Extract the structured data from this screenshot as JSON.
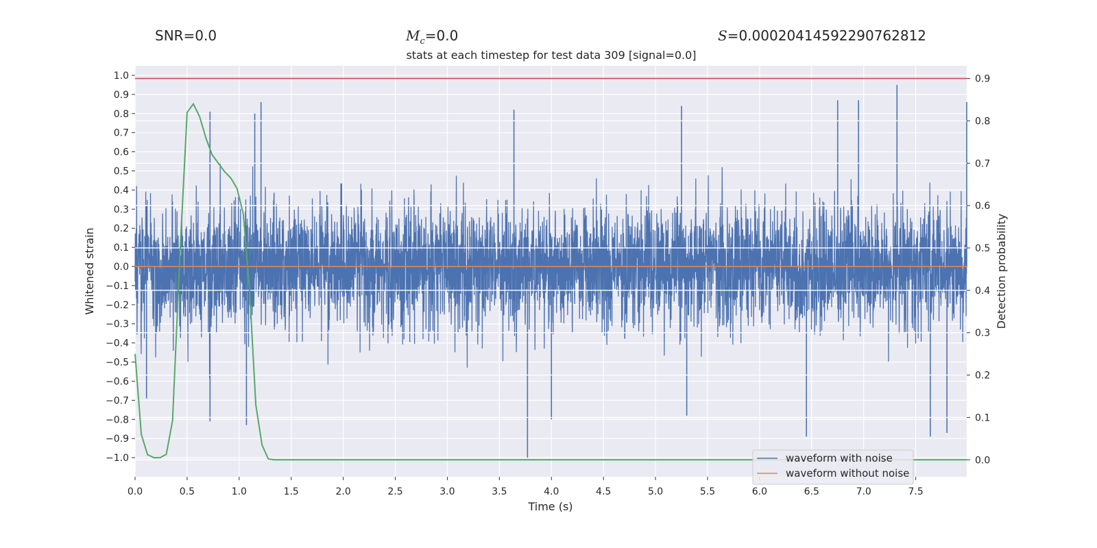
{
  "header": {
    "snr": "SNR=0.0",
    "mc_symbol": "M",
    "mc_sub": "c",
    "mc_value": "=0.0",
    "s_symbol": "S",
    "s_value": "=0.00020414592290762812"
  },
  "chart_data": {
    "type": "line",
    "title": "stats at each timestep for test data 309 [signal=0.0]",
    "xlabel": "Time (s)",
    "ylabel": "Whitened strain",
    "y2label": "Detection probability",
    "xlim": [
      0.0,
      7.99
    ],
    "ylim": [
      -1.1,
      1.05
    ],
    "y2lim": [
      -0.04,
      0.93
    ],
    "xticks": [
      "0.0",
      "0.5",
      "1.0",
      "1.5",
      "2.0",
      "2.5",
      "3.0",
      "3.5",
      "4.0",
      "4.5",
      "5.0",
      "5.5",
      "6.0",
      "6.5",
      "7.0",
      "7.5"
    ],
    "yticks": [
      "1.0",
      "0.9",
      "0.8",
      "0.7",
      "0.6",
      "0.5",
      "0.4",
      "0.3",
      "0.2",
      "0.1",
      "0.0",
      "−0.1",
      "−0.2",
      "−0.3",
      "−0.4",
      "−0.5",
      "−0.6",
      "−0.7",
      "−0.8",
      "−0.9",
      "−1.0"
    ],
    "y2ticks": [
      "0.9",
      "0.8",
      "0.7",
      "0.6",
      "0.5",
      "0.4",
      "0.3",
      "0.2",
      "0.1",
      "0.0"
    ],
    "threshold": 0.9,
    "legend": {
      "position": "lower-right",
      "entries": [
        "waveform with noise",
        "waveform without noise"
      ]
    },
    "series": [
      {
        "name": "waveform with noise",
        "color": "#4c72b0",
        "axis": "left",
        "description": "noisy whitened strain, dense band roughly between -0.45 and 0.45",
        "typical_amplitude": 0.16,
        "peaks": [
          [
            0.72,
            0.81
          ],
          [
            1.15,
            0.8
          ],
          [
            1.21,
            0.86
          ],
          [
            3.64,
            0.82
          ],
          [
            5.25,
            0.84
          ],
          [
            6.75,
            0.87
          ],
          [
            6.95,
            0.87
          ],
          [
            7.32,
            0.95
          ],
          [
            7.99,
            0.86
          ]
        ],
        "troughs": [
          [
            0.11,
            -0.69
          ],
          [
            0.72,
            -0.81
          ],
          [
            1.07,
            -0.83
          ],
          [
            3.77,
            -1.0
          ],
          [
            4.0,
            -0.8
          ],
          [
            5.3,
            -0.78
          ],
          [
            6.45,
            -0.89
          ],
          [
            7.64,
            -0.89
          ],
          [
            7.8,
            -0.87
          ]
        ]
      },
      {
        "name": "waveform without noise",
        "color": "#dd8452",
        "axis": "left",
        "x": [
          0.0,
          7.99
        ],
        "y": [
          0.0,
          0.0
        ]
      },
      {
        "name": "detection probability",
        "color": "#55a868",
        "axis": "right",
        "x": [
          0.0,
          0.06,
          0.12,
          0.18,
          0.24,
          0.3,
          0.36,
          0.43,
          0.5,
          0.56,
          0.62,
          0.68,
          0.74,
          0.8,
          0.86,
          0.92,
          0.98,
          1.04,
          1.1,
          1.16,
          1.22,
          1.28,
          1.34,
          1.5,
          3.0,
          5.0,
          7.99
        ],
        "y": [
          0.25,
          0.06,
          0.012,
          0.005,
          0.005,
          0.013,
          0.092,
          0.48,
          0.82,
          0.84,
          0.81,
          0.76,
          0.72,
          0.7,
          0.68,
          0.665,
          0.64,
          0.58,
          0.4,
          0.13,
          0.035,
          0.002,
          0.0,
          0.0,
          0.0,
          0.0,
          0.0
        ]
      }
    ]
  }
}
